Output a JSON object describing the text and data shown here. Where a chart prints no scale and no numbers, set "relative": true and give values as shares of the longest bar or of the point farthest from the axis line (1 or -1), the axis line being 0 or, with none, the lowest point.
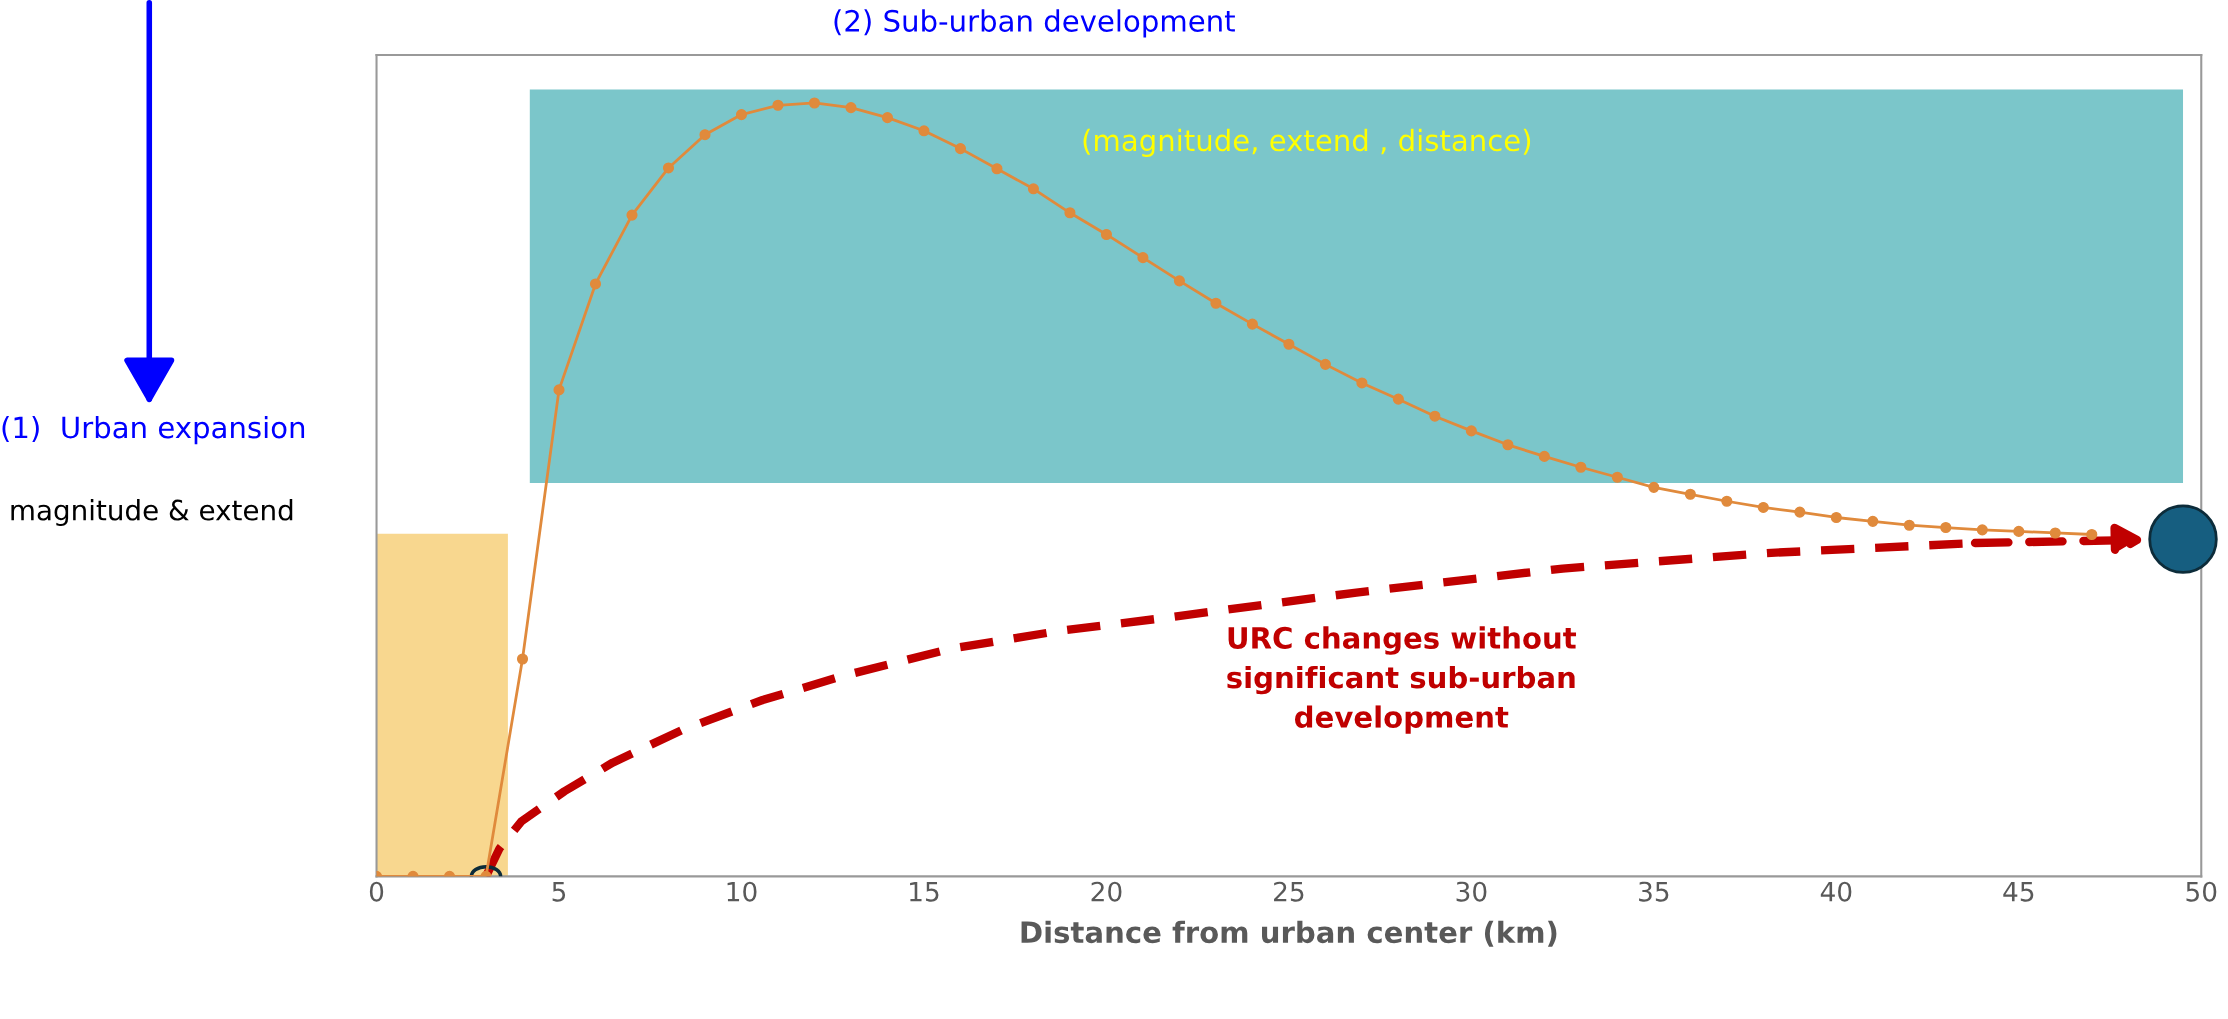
{
  "chart_data": {
    "type": "line",
    "relative": true,
    "xlabel": "Distance from urban center (km)",
    "xlim": [
      0,
      50
    ],
    "xticks": [
      0,
      5,
      10,
      15,
      20,
      25,
      30,
      35,
      40,
      45,
      50
    ],
    "grid": false,
    "marker": "circle",
    "line_style": "solid",
    "series": [
      {
        "color": "#e08a3c",
        "x": [
          0,
          1,
          2,
          3,
          4,
          5,
          6,
          7,
          8,
          9,
          10,
          11,
          12,
          13,
          14,
          15,
          16,
          17,
          18,
          19,
          20,
          21,
          22,
          23,
          24,
          25,
          26,
          27,
          28,
          29,
          30,
          31,
          32,
          33,
          34,
          35,
          36,
          37,
          38,
          39,
          40,
          41,
          42,
          43,
          44,
          45,
          46,
          47
        ],
        "values": [
          0,
          0,
          0,
          0,
          0.281,
          0.629,
          0.766,
          0.855,
          0.916,
          0.959,
          0.985,
          0.997,
          1.0,
          0.994,
          0.981,
          0.964,
          0.941,
          0.915,
          0.889,
          0.858,
          0.83,
          0.8,
          0.77,
          0.741,
          0.714,
          0.688,
          0.662,
          0.638,
          0.617,
          0.595,
          0.576,
          0.558,
          0.543,
          0.529,
          0.516,
          0.503,
          0.494,
          0.485,
          0.477,
          0.471,
          0.464,
          0.459,
          0.454,
          0.451,
          0.448,
          0.446,
          0.444,
          0.442
        ]
      },
      {
        "name": "URC changes without\nsignificant sub-urban\ndevelopment",
        "color": "#c00000",
        "line_style": "dashed",
        "marker": "none",
        "x": [
          3,
          3.37,
          3.97,
          5.15,
          6.47,
          8.36,
          10.58,
          12.77,
          15.7,
          18.66,
          21.4,
          26.85,
          32.5,
          38.1,
          43.8
        ],
        "values": [
          0,
          0.036,
          0.071,
          0.11,
          0.147,
          0.189,
          0.228,
          0.259,
          0.294,
          0.317,
          0.333,
          0.367,
          0.398,
          0.418,
          0.431
        ]
      },
      {
        "type": "scatter",
        "color": "#165e80",
        "x": [
          49.5
        ],
        "values": [
          0.436
        ]
      }
    ],
    "bands": [
      {
        "axis": "x",
        "from": 0,
        "to": 3.6,
        "color": "#f6c96a"
      },
      {
        "axis": "x",
        "from": 4.2,
        "to": 49.5,
        "color": "#4fb3b8",
        "label": "(magnitude, extend , distance)"
      }
    ],
    "annotations": [
      "(2) Sub-urban development",
      "(1)  Urban expansion",
      "magnitude & extend"
    ]
  }
}
